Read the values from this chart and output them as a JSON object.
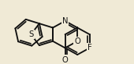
{
  "bg": "#f0ead6",
  "col": "#111111",
  "lw": 1.35,
  "doff": 2.3,
  "fs": 7.2,
  "fused_A": [
    67,
    27
  ],
  "fused_B": [
    67,
    45
  ]
}
